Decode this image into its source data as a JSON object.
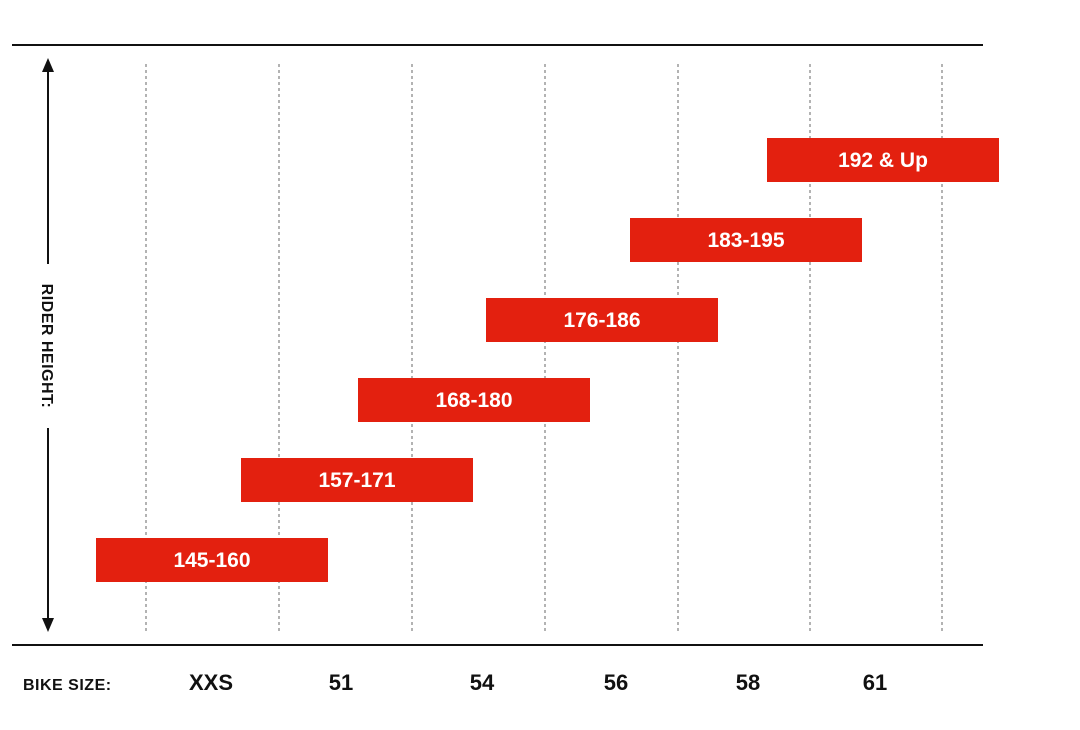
{
  "chart_data": {
    "type": "bar",
    "orientation": "horizontal-range",
    "xlabel": "BIKE SIZE:",
    "ylabel": "RIDER HEIGHT:",
    "categories": [
      "XXS",
      "51",
      "54",
      "56",
      "58",
      "61"
    ],
    "bars": [
      {
        "label": "145-160",
        "size": "XXS"
      },
      {
        "label": "157-171",
        "size": "51"
      },
      {
        "label": "168-180",
        "size": "54"
      },
      {
        "label": "176-186",
        "size": "56"
      },
      {
        "label": "183-195",
        "size": "58"
      },
      {
        "label": "192 & Up",
        "size": "61"
      }
    ],
    "grid": true,
    "colors": {
      "bar": "#e3200f",
      "bar_text": "#ffffff",
      "axis": "#111111",
      "grid": "#8a8a8a"
    }
  }
}
